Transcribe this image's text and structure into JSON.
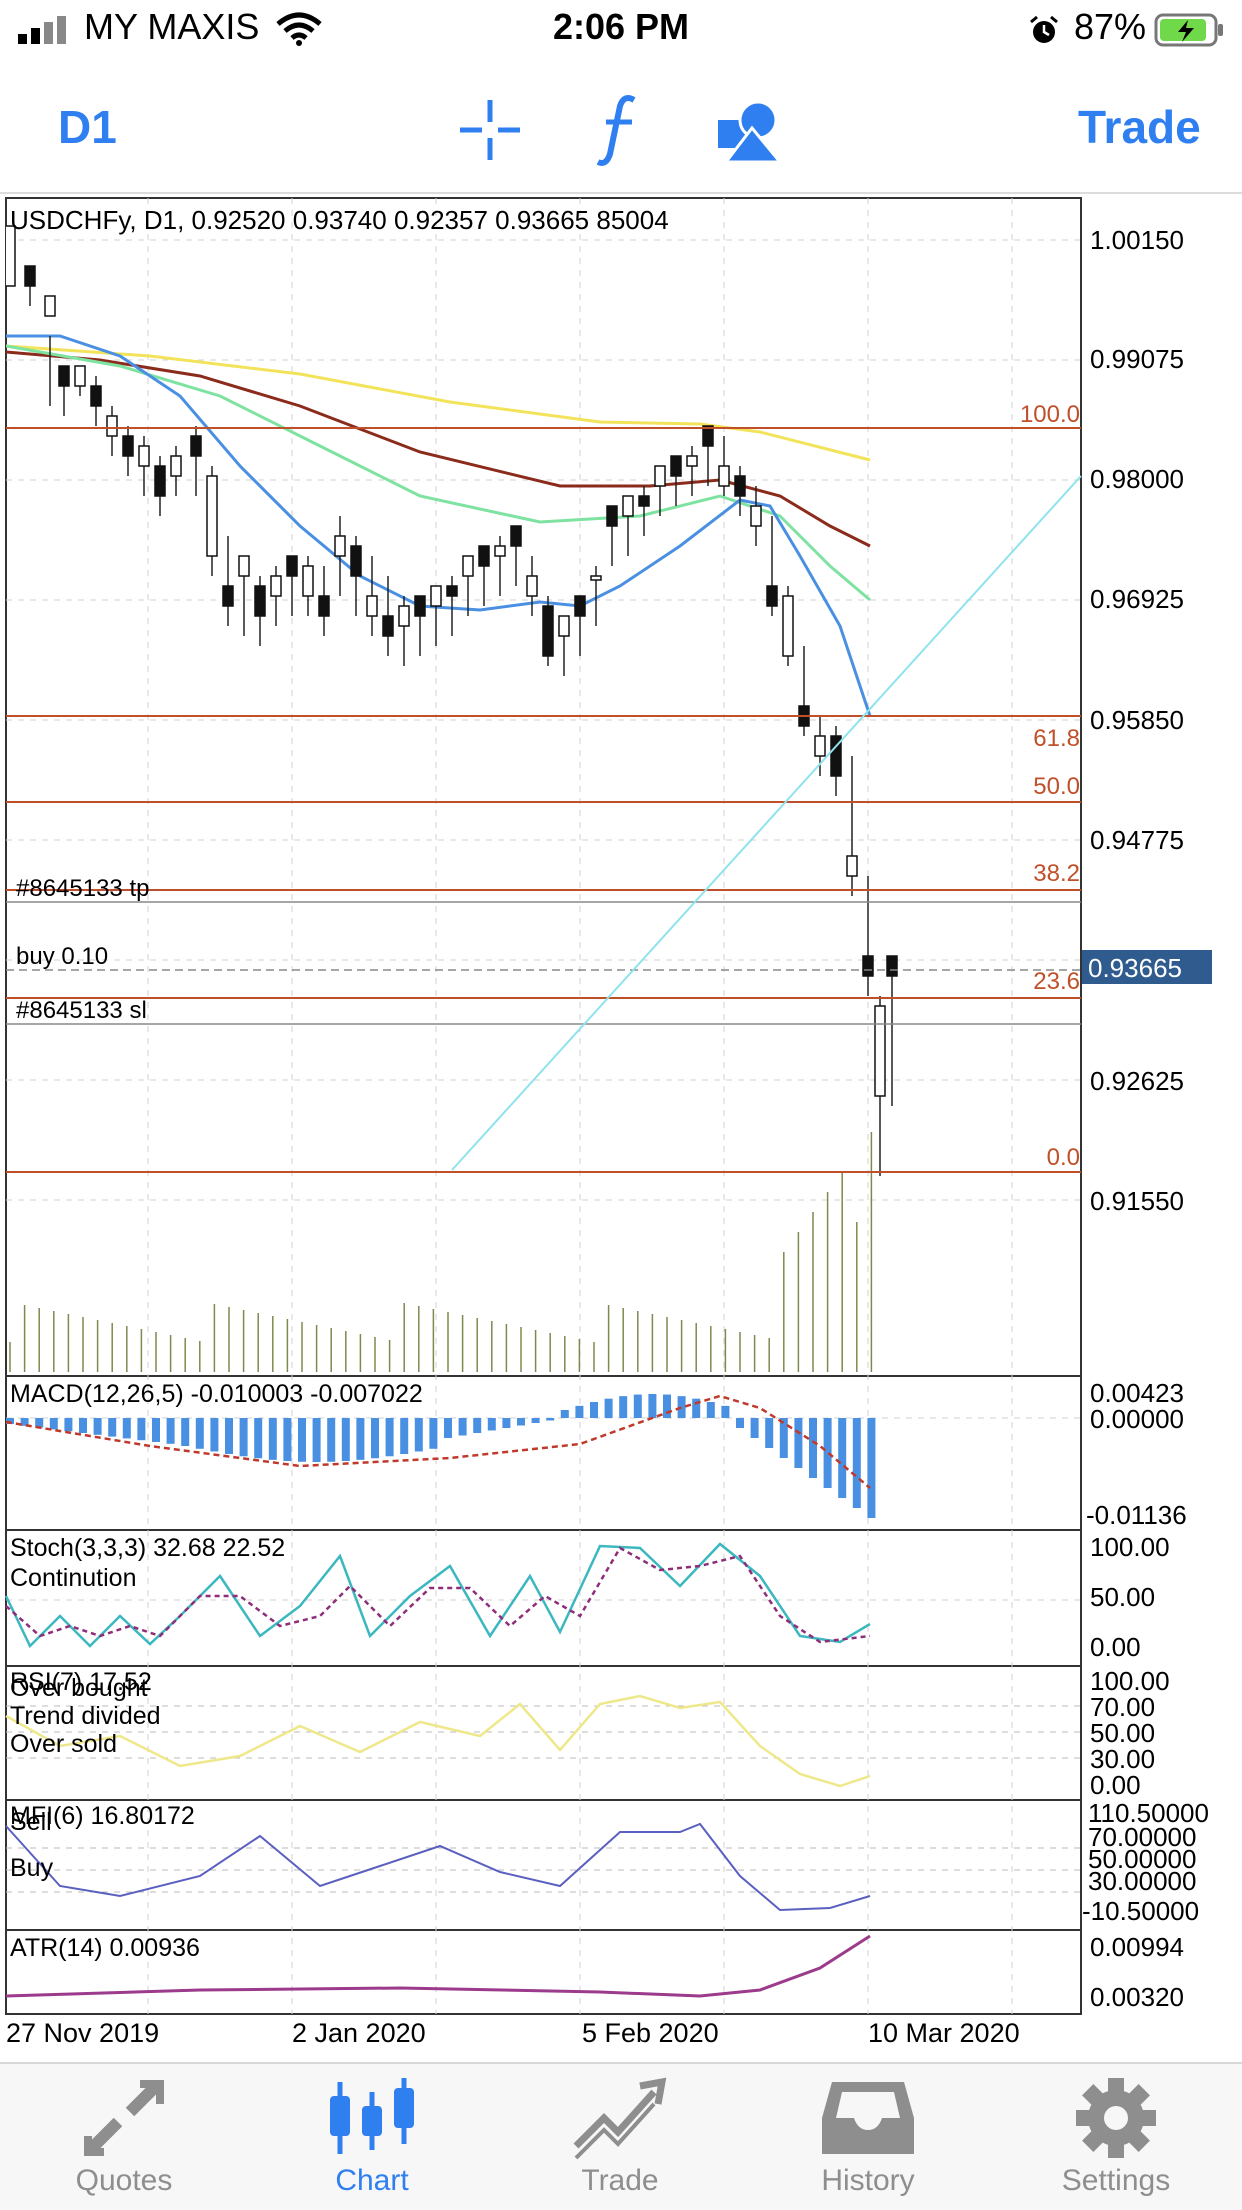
{
  "status_bar": {
    "carrier": "MY MAXIS",
    "time": "2:06 PM",
    "battery": "87%"
  },
  "toolbar": {
    "timeframe": "D1",
    "crosshair_icon": "crosshair-icon",
    "indicators_icon": "function-icon",
    "objects_icon": "shapes-icon",
    "trade_label": "Trade"
  },
  "chart": {
    "header": "USDCHFy, D1, 0.92520 0.93740 0.92357 0.93665 85004",
    "price_axis": [
      "1.00150",
      "0.99075",
      "0.98000",
      "0.96925",
      "0.95850",
      "0.94775",
      "0.93665",
      "0.92625",
      "0.91550"
    ],
    "current_price": "0.93665",
    "fib_levels": [
      "100.0",
      "61.8",
      "50.0",
      "38.2",
      "23.6",
      "0.0"
    ],
    "order_labels": {
      "tp": "#8645133 tp",
      "buy": "buy 0.10",
      "sl": "#8645133 sl"
    },
    "date_axis": [
      "27 Nov 2019",
      "2 Jan 2020",
      "5 Feb 2020",
      "10 Mar 2020"
    ],
    "colors": {
      "fib": "#c0502a",
      "ma_yellow": "#f2e35a",
      "ma_brown": "#8b2b1b",
      "ma_green": "#7ee2a0",
      "ma_blue": "#4a90e2",
      "trendline": "#8fe3ef",
      "price_badge": "#2f5b8f"
    }
  },
  "indicators": {
    "macd": {
      "label": "MACD(12,26,5) -0.010003 -0.007022",
      "axis": [
        "0.00423",
        "0.00000",
        "-0.01136"
      ]
    },
    "stoch": {
      "label": "Stoch(3,3,3) 32.68 22.52",
      "sub": "Continution",
      "axis": [
        "100.00",
        "50.00",
        "0.00"
      ]
    },
    "rsi": {
      "label": "RSI(7) 17.52",
      "overbought": "Over bought",
      "trend": "Trend divided",
      "oversold": "Over sold",
      "axis": [
        "100.00",
        "70.00",
        "50.00",
        "30.00",
        "0.00"
      ]
    },
    "mfi": {
      "label": "MFI(6) 16.80172",
      "sell": "Sell",
      "buy": "Buy",
      "axis": [
        "110.50000",
        "70.00000",
        "50.00000",
        "30.00000",
        "-10.50000"
      ]
    },
    "atr": {
      "label": "ATR(14) 0.00936",
      "axis": [
        "0.00994",
        "0.00320"
      ]
    }
  },
  "tabbar": {
    "items": [
      {
        "label": "Quotes",
        "icon": "arrows-icon"
      },
      {
        "label": "Chart",
        "icon": "candles-icon"
      },
      {
        "label": "Trade",
        "icon": "trend-icon"
      },
      {
        "label": "History",
        "icon": "inbox-icon"
      },
      {
        "label": "Settings",
        "icon": "gear-icon"
      }
    ],
    "active": "Chart"
  }
}
